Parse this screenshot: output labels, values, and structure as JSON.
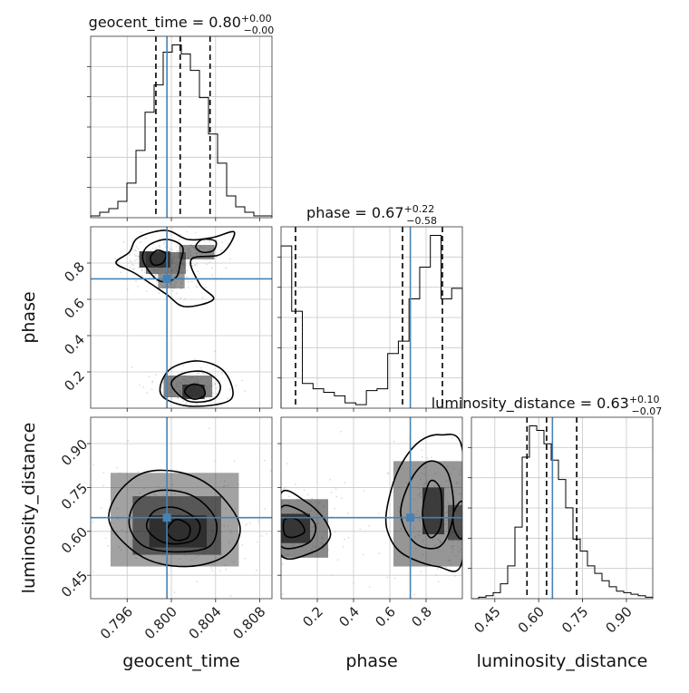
{
  "chart_data": {
    "type": "corner",
    "parameters": [
      "geocent_time",
      "phase",
      "luminosity_distance"
    ],
    "truths": {
      "geocent_time": 0.7996,
      "phase": 0.713,
      "luminosity_distance": 0.647
    },
    "colors": {
      "truth": "#4682b4",
      "hist": "#000000",
      "scatter": "#9a9a9a"
    },
    "titles": [
      {
        "param": "geocent_time",
        "text": "geocent_time = 0.80",
        "plus": "+0.00",
        "minus": "−0.00"
      },
      {
        "param": "phase",
        "text": "phase = 0.67",
        "plus": "+0.22",
        "minus": "−0.58"
      },
      {
        "param": "luminosity_distance",
        "text": "luminosity_distance = 0.63",
        "plus": "+0.10",
        "minus": "−0.07"
      }
    ],
    "axes": {
      "geocent_time": {
        "label": "geocent_time",
        "range": [
          0.7927,
          0.8091
        ],
        "ticks": [
          0.796,
          0.8,
          0.804,
          0.808
        ],
        "tick_labels": [
          "0.796",
          "0.800",
          "0.804",
          "0.808"
        ]
      },
      "phase": {
        "label": "phase",
        "range": [
          0.0,
          1.0
        ],
        "ticks": [
          0.2,
          0.4,
          0.6,
          0.8
        ],
        "tick_labels": [
          "0.2",
          "0.4",
          "0.6",
          "0.8"
        ]
      },
      "luminosity_distance": {
        "label": "luminosity_distance",
        "range": [
          0.37,
          0.99
        ],
        "ticks": [
          0.45,
          0.6,
          0.75,
          0.9
        ],
        "tick_labels": [
          "0.45",
          "0.60",
          "0.75",
          "0.90"
        ]
      }
    },
    "histograms": [
      {
        "param": "geocent_time",
        "quantiles": [
          0.7986,
          0.8008,
          0.8035
        ],
        "counts": [
          1,
          3,
          5,
          9,
          19,
          37,
          58,
          73,
          91,
          95,
          90,
          81,
          66,
          46,
          30,
          12,
          6,
          3,
          1,
          1
        ]
      },
      {
        "param": "phase",
        "quantiles": [
          0.08,
          0.67,
          0.89
        ],
        "counts": [
          92,
          55,
          14,
          11,
          9,
          7,
          3,
          2,
          10,
          11,
          31,
          38,
          62,
          80,
          98,
          62,
          68
        ]
      },
      {
        "param": "luminosity_distance",
        "quantiles": [
          0.56,
          0.627,
          0.73
        ],
        "counts": [
          0,
          1,
          2,
          4,
          10,
          22,
          48,
          95,
          116,
          113,
          104,
          93,
          80,
          61,
          40,
          32,
          22,
          17,
          12,
          8,
          5,
          4,
          3,
          2,
          1
        ]
      }
    ],
    "pairs": [
      {
        "x": "geocent_time",
        "y": "phase",
        "density": [
          {
            "x": 0.7985,
            "y": 0.82,
            "w": 0.0014,
            "h": 0.045,
            "level": 1.0
          },
          {
            "x": 0.7995,
            "y": 0.8,
            "w": 0.0018,
            "h": 0.06,
            "level": 0.6
          },
          {
            "x": 0.8,
            "y": 0.7,
            "w": 0.0012,
            "h": 0.04,
            "level": 0.4
          },
          {
            "x": 0.802,
            "y": 0.09,
            "w": 0.001,
            "h": 0.04,
            "level": 1.0
          },
          {
            "x": 0.8015,
            "y": 0.12,
            "w": 0.0022,
            "h": 0.06,
            "level": 0.55
          },
          {
            "x": 0.8023,
            "y": 0.86,
            "w": 0.0016,
            "h": 0.04,
            "level": 0.45
          }
        ],
        "contours": [
          [
            [
              0.7962,
              0.86
            ],
            [
              0.797,
              0.94
            ],
            [
              0.7995,
              0.98
            ],
            [
              0.8015,
              0.93
            ],
            [
              0.8037,
              0.94
            ],
            [
              0.8057,
              0.97
            ],
            [
              0.8045,
              0.85
            ],
            [
              0.8018,
              0.82
            ],
            [
              0.8026,
              0.68
            ],
            [
              0.8038,
              0.6
            ],
            [
              0.8012,
              0.56
            ],
            [
              0.7995,
              0.63
            ],
            [
              0.7968,
              0.74
            ],
            [
              0.795,
              0.8
            ]
          ],
          [
            [
              0.7974,
              0.84
            ],
            [
              0.798,
              0.9
            ],
            [
              0.7996,
              0.93
            ],
            [
              0.801,
              0.89
            ],
            [
              0.8008,
              0.8
            ],
            [
              0.8004,
              0.72
            ],
            [
              0.799,
              0.7
            ],
            [
              0.7978,
              0.77
            ]
          ],
          [
            [
              0.7981,
              0.83
            ],
            [
              0.7987,
              0.87
            ],
            [
              0.7995,
              0.85
            ],
            [
              0.7992,
              0.8
            ],
            [
              0.7984,
              0.79
            ]
          ],
          [
            [
              0.799,
              0.12
            ],
            [
              0.8,
              0.22
            ],
            [
              0.8025,
              0.26
            ],
            [
              0.8048,
              0.2
            ],
            [
              0.8054,
              0.05
            ],
            [
              0.802,
              0.01
            ],
            [
              0.7995,
              0.05
            ]
          ],
          [
            [
              0.8,
              0.13
            ],
            [
              0.801,
              0.19
            ],
            [
              0.803,
              0.2
            ],
            [
              0.8044,
              0.13
            ],
            [
              0.8038,
              0.05
            ],
            [
              0.8015,
              0.04
            ]
          ],
          [
            [
              0.8012,
              0.09
            ],
            [
              0.8018,
              0.13
            ],
            [
              0.8028,
              0.12
            ],
            [
              0.803,
              0.07
            ],
            [
              0.802,
              0.05
            ]
          ],
          [
            [
              0.8022,
              0.89
            ],
            [
              0.8028,
              0.93
            ],
            [
              0.804,
              0.92
            ],
            [
              0.8038,
              0.87
            ],
            [
              0.8028,
              0.86
            ]
          ]
        ]
      },
      {
        "x": "geocent_time",
        "y": "luminosity_distance",
        "density": [
          {
            "x": 0.8006,
            "y": 0.6,
            "w": 0.0026,
            "h": 0.055,
            "level": 1.0
          },
          {
            "x": 0.8005,
            "y": 0.62,
            "w": 0.004,
            "h": 0.1,
            "level": 0.6
          },
          {
            "x": 0.8003,
            "y": 0.64,
            "w": 0.0058,
            "h": 0.16,
            "level": 0.3
          }
        ],
        "contours": [
          [
            [
              0.7945,
              0.62
            ],
            [
              0.795,
              0.72
            ],
            [
              0.7975,
              0.8
            ],
            [
              0.801,
              0.8
            ],
            [
              0.804,
              0.74
            ],
            [
              0.8062,
              0.62
            ],
            [
              0.805,
              0.52
            ],
            [
              0.8015,
              0.48
            ],
            [
              0.7975,
              0.51
            ]
          ],
          [
            [
              0.7962,
              0.62
            ],
            [
              0.7968,
              0.7
            ],
            [
              0.799,
              0.74
            ],
            [
              0.802,
              0.72
            ],
            [
              0.804,
              0.64
            ],
            [
              0.8035,
              0.55
            ],
            [
              0.8005,
              0.53
            ],
            [
              0.7975,
              0.55
            ]
          ],
          [
            [
              0.7978,
              0.61
            ],
            [
              0.7985,
              0.67
            ],
            [
              0.8005,
              0.68
            ],
            [
              0.8025,
              0.63
            ],
            [
              0.802,
              0.57
            ],
            [
              0.7995,
              0.56
            ]
          ],
          [
            [
              0.7996,
              0.6
            ],
            [
              0.8004,
              0.64
            ],
            [
              0.8016,
              0.62
            ],
            [
              0.8015,
              0.58
            ],
            [
              0.8004,
              0.57
            ]
          ]
        ]
      },
      {
        "x": "phase",
        "y": "luminosity_distance",
        "density": [
          {
            "x": 0.08,
            "y": 0.61,
            "w": 0.08,
            "h": 0.05,
            "level": 1.0
          },
          {
            "x": 0.08,
            "y": 0.61,
            "w": 0.18,
            "h": 0.1,
            "level": 0.5
          },
          {
            "x": 0.84,
            "y": 0.67,
            "w": 0.06,
            "h": 0.08,
            "level": 0.95
          },
          {
            "x": 0.82,
            "y": 0.66,
            "w": 0.2,
            "h": 0.18,
            "level": 0.4
          },
          {
            "x": 0.97,
            "y": 0.63,
            "w": 0.05,
            "h": 0.06,
            "level": 0.6
          }
        ],
        "contours": [
          [
            [
              0.0,
              0.73
            ],
            [
              0.14,
              0.7
            ],
            [
              0.24,
              0.64
            ],
            [
              0.27,
              0.58
            ],
            [
              0.18,
              0.53
            ],
            [
              0.0,
              0.52
            ]
          ],
          [
            [
              0.0,
              0.68
            ],
            [
              0.11,
              0.67
            ],
            [
              0.19,
              0.62
            ],
            [
              0.15,
              0.56
            ],
            [
              0.0,
              0.55
            ]
          ],
          [
            [
              0.02,
              0.64
            ],
            [
              0.09,
              0.64
            ],
            [
              0.13,
              0.6
            ],
            [
              0.07,
              0.58
            ],
            [
              0.02,
              0.59
            ]
          ],
          [
            [
              0.58,
              0.66
            ],
            [
              0.64,
              0.8
            ],
            [
              0.75,
              0.9
            ],
            [
              0.88,
              0.93
            ],
            [
              1.0,
              0.88
            ],
            [
              1.0,
              0.5
            ],
            [
              0.86,
              0.48
            ],
            [
              0.68,
              0.52
            ],
            [
              0.6,
              0.58
            ]
          ],
          [
            [
              0.66,
              0.66
            ],
            [
              0.72,
              0.78
            ],
            [
              0.82,
              0.84
            ],
            [
              0.92,
              0.8
            ],
            [
              0.95,
              0.66
            ],
            [
              0.88,
              0.55
            ],
            [
              0.74,
              0.56
            ]
          ],
          [
            [
              0.78,
              0.66
            ],
            [
              0.82,
              0.77
            ],
            [
              0.88,
              0.74
            ],
            [
              0.88,
              0.62
            ],
            [
              0.82,
              0.58
            ]
          ],
          [
            [
              0.95,
              0.66
            ],
            [
              1.0,
              0.7
            ],
            [
              1.0,
              0.58
            ],
            [
              0.96,
              0.6
            ]
          ]
        ]
      }
    ]
  }
}
